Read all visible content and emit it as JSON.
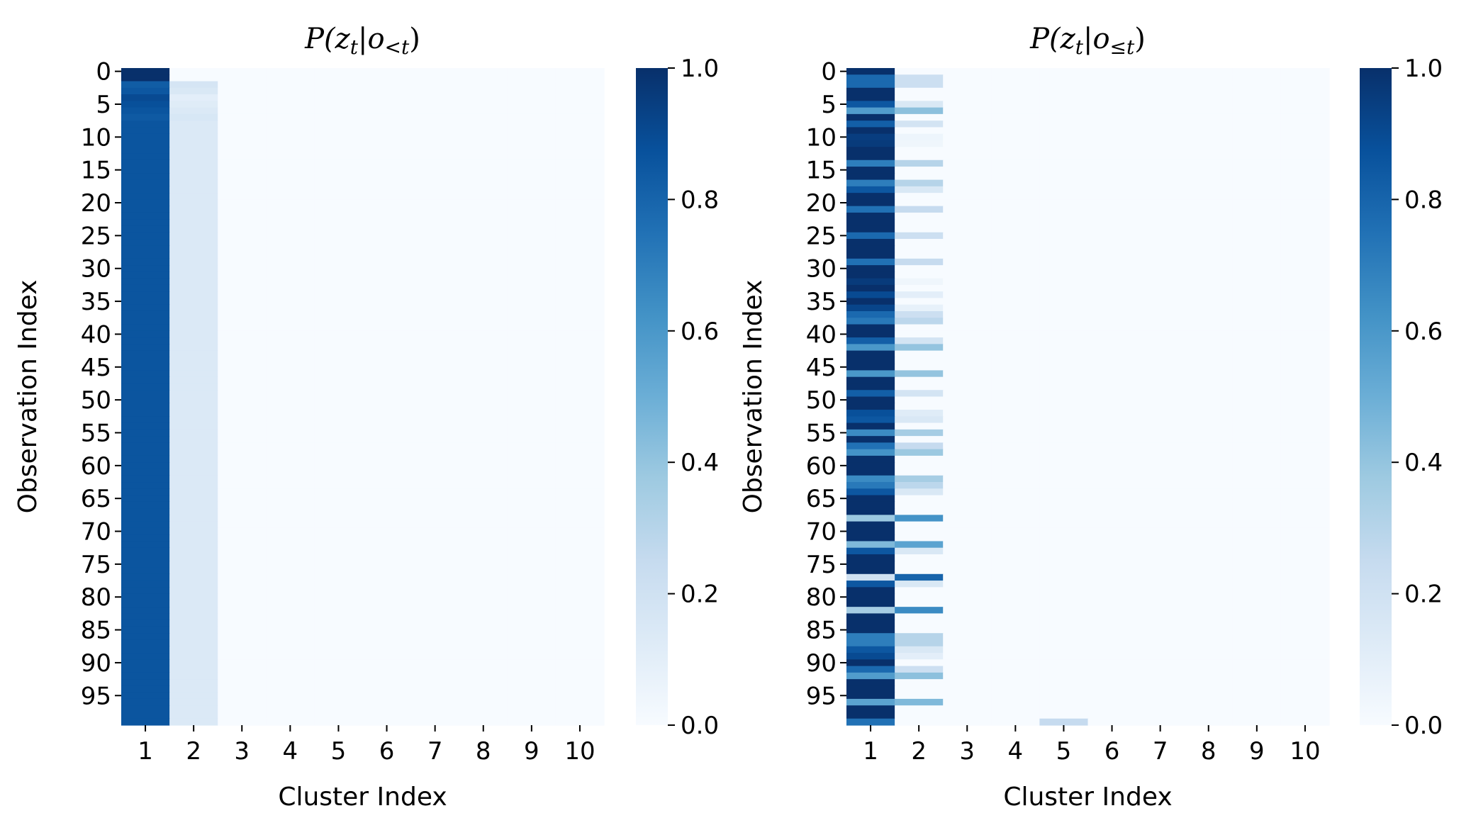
{
  "chart_data": [
    {
      "type": "heatmap",
      "title": "P(z_t | o_<t)",
      "title_parts": {
        "base": "P(z",
        "sub": "t",
        "mid": "|o",
        "sub2": "<t",
        "end": ")"
      },
      "xlabel": "Cluster Index",
      "ylabel": "Observation Index",
      "x_categories": [
        "1",
        "2",
        "3",
        "4",
        "5",
        "6",
        "7",
        "8",
        "9",
        "10"
      ],
      "y_tick_labels": [
        "0",
        "5",
        "10",
        "15",
        "20",
        "25",
        "30",
        "35",
        "40",
        "45",
        "50",
        "55",
        "60",
        "65",
        "70",
        "75",
        "80",
        "85",
        "90",
        "95"
      ],
      "n_rows": 100,
      "colormap": "Blues",
      "vmin": 0.0,
      "vmax": 1.0,
      "colorbar_ticks": [
        "0.0",
        "0.2",
        "0.4",
        "0.6",
        "0.8",
        "1.0"
      ],
      "column_profiles": [
        {
          "col": 1,
          "default": 0.86,
          "overrides": {
            "0": 1.0,
            "1": 1.0,
            "2": 0.83,
            "3": 0.85,
            "4": 0.9,
            "5": 0.88,
            "6": 0.86,
            "7": 0.84
          }
        },
        {
          "col": 2,
          "default": 0.14,
          "overrides": {
            "0": 0.0,
            "1": 0.0,
            "2": 0.17,
            "3": 0.15,
            "4": 0.1,
            "5": 0.12,
            "6": 0.14,
            "7": 0.16
          }
        }
      ],
      "others": 0.0
    },
    {
      "type": "heatmap",
      "title": "P(z_t | o_≤t)",
      "title_parts": {
        "base": "P(z",
        "sub": "t",
        "mid": "|o",
        "sub2": "≤t",
        "end": ")"
      },
      "xlabel": "Cluster Index",
      "ylabel": "Observation Index",
      "x_categories": [
        "1",
        "2",
        "3",
        "4",
        "5",
        "6",
        "7",
        "8",
        "9",
        "10"
      ],
      "y_tick_labels": [
        "0",
        "5",
        "10",
        "15",
        "20",
        "25",
        "30",
        "35",
        "40",
        "45",
        "50",
        "55",
        "60",
        "65",
        "70",
        "75",
        "80",
        "85",
        "90",
        "95"
      ],
      "n_rows": 100,
      "colormap": "Blues",
      "vmin": 0.0,
      "vmax": 1.0,
      "colorbar_ticks": [
        "0.0",
        "0.2",
        "0.4",
        "0.6",
        "0.8",
        "1.0"
      ],
      "col1_default": 1.0,
      "col2_values": {
        "1": 0.22,
        "2": 0.22,
        "5": 0.15,
        "6": 0.42,
        "8": 0.18,
        "10": 0.05,
        "11": 0.04,
        "14": 0.3,
        "17": 0.3,
        "18": 0.15,
        "21": 0.25,
        "25": 0.22,
        "29": 0.25,
        "32": 0.04,
        "34": 0.1,
        "36": 0.08,
        "37": 0.22,
        "38": 0.28,
        "41": 0.18,
        "42": 0.4,
        "46": 0.4,
        "49": 0.18,
        "52": 0.12,
        "53": 0.15,
        "55": 0.35,
        "57": 0.25,
        "58": 0.38,
        "62": 0.35,
        "63": 0.28,
        "64": 0.15,
        "68": 0.62,
        "72": 0.55,
        "73": 0.15,
        "77": 0.8,
        "78": 0.15,
        "82": 0.65,
        "86": 0.3,
        "87": 0.3,
        "88": 0.15,
        "89": 0.1,
        "91": 0.22,
        "92": 0.42,
        "96": 0.45
      },
      "col5_values": {
        "99": 0.25
      },
      "others": 0.0
    }
  ]
}
